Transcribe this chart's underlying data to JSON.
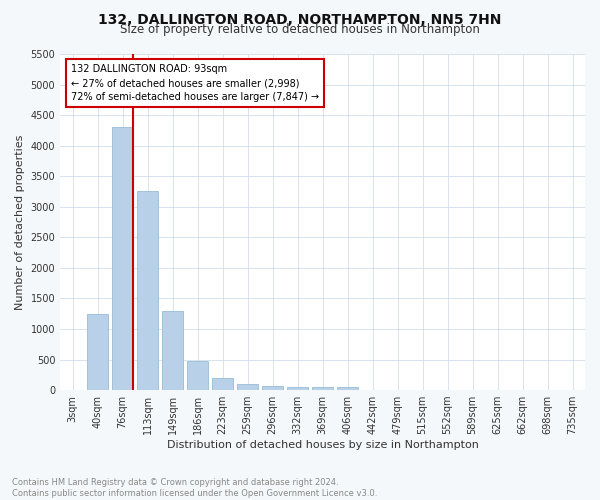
{
  "title": "132, DALLINGTON ROAD, NORTHAMPTON, NN5 7HN",
  "subtitle": "Size of property relative to detached houses in Northampton",
  "xlabel": "Distribution of detached houses by size in Northampton",
  "ylabel": "Number of detached properties",
  "categories": [
    "3sqm",
    "40sqm",
    "76sqm",
    "113sqm",
    "149sqm",
    "186sqm",
    "223sqm",
    "259sqm",
    "296sqm",
    "332sqm",
    "369sqm",
    "406sqm",
    "442sqm",
    "479sqm",
    "515sqm",
    "552sqm",
    "589sqm",
    "625sqm",
    "662sqm",
    "698sqm",
    "735sqm"
  ],
  "values": [
    0,
    1250,
    4300,
    3250,
    1300,
    480,
    200,
    100,
    60,
    50,
    50,
    50,
    0,
    0,
    0,
    0,
    0,
    0,
    0,
    0,
    0
  ],
  "bar_color": "#b8d0e8",
  "bar_edge_color": "#8ab4d0",
  "vline_x_index": 2,
  "vline_color": "#cc0000",
  "annotation_text": "132 DALLINGTON ROAD: 93sqm\n← 27% of detached houses are smaller (2,998)\n72% of semi-detached houses are larger (7,847) →",
  "annotation_box_color": "#cc0000",
  "ylim": [
    0,
    5500
  ],
  "yticks": [
    0,
    500,
    1000,
    1500,
    2000,
    2500,
    3000,
    3500,
    4000,
    4500,
    5000,
    5500
  ],
  "footnote": "Contains HM Land Registry data © Crown copyright and database right 2024.\nContains public sector information licensed under the Open Government Licence v3.0.",
  "bg_color": "#f5f8fa",
  "plot_bg_color": "#ffffff",
  "title_fontsize": 10,
  "subtitle_fontsize": 8.5,
  "axis_label_fontsize": 8,
  "tick_fontsize": 7,
  "footnote_fontsize": 6
}
